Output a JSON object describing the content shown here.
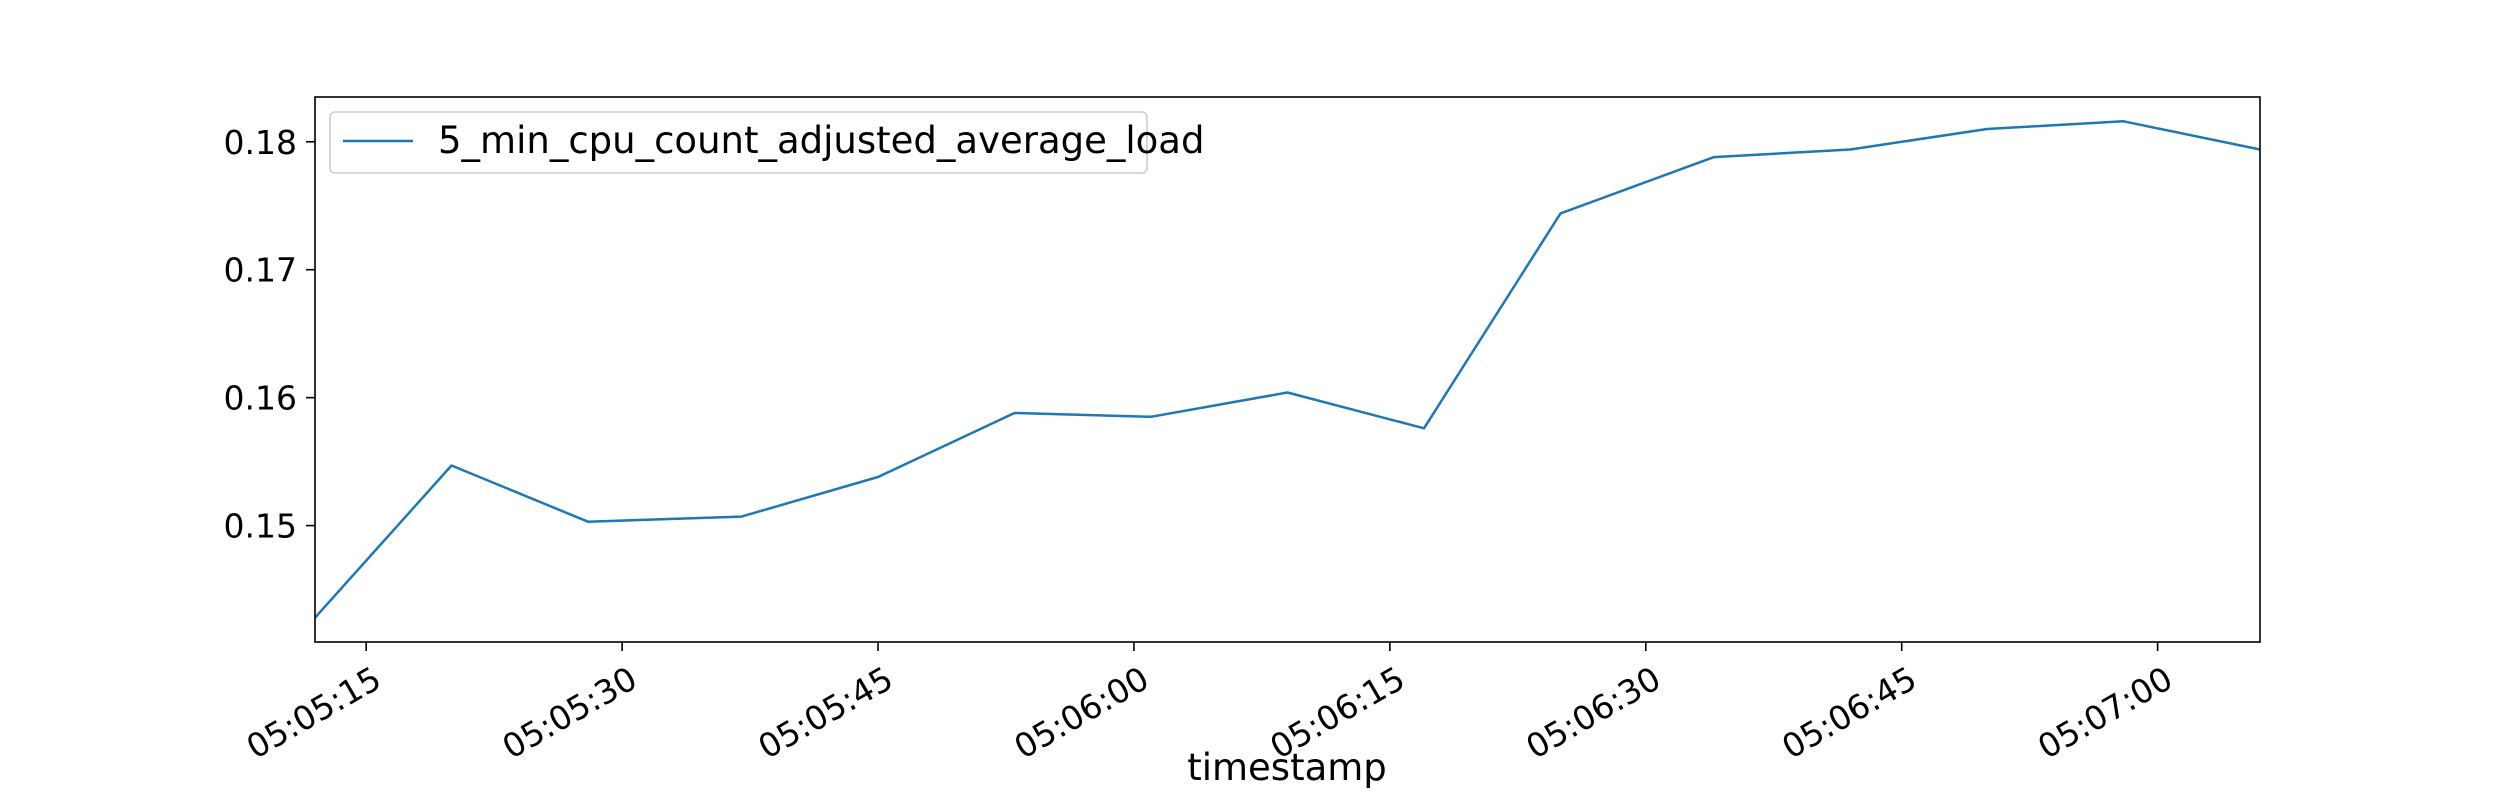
{
  "chart_data": {
    "type": "line",
    "title": "",
    "xlabel": "timestamp",
    "ylabel": "",
    "x": [
      "05:05:12",
      "05:05:20",
      "05:05:28",
      "05:05:37",
      "05:05:45",
      "05:05:53",
      "05:06:01",
      "05:06:09",
      "05:06:17",
      "05:06:25",
      "05:06:34",
      "05:06:42",
      "05:06:50",
      "05:06:58",
      "05:07:06"
    ],
    "series": [
      {
        "name": "5_min_cpu_count_adjusted_average_load",
        "color": "#1f77b4",
        "values": [
          0.1428,
          0.1547,
          0.1503,
          0.1507,
          0.1538,
          0.1588,
          0.1585,
          0.1604,
          0.1576,
          0.1744,
          0.1788,
          0.1794,
          0.181,
          0.1816,
          0.1794
        ]
      }
    ],
    "xlim": [
      "05:05:12",
      "05:07:06"
    ],
    "ylim": [
      0.1409,
      0.1835
    ],
    "x_ticks": [
      "05:05:15",
      "05:05:30",
      "05:05:45",
      "05:06:00",
      "05:06:15",
      "05:06:30",
      "05:06:45",
      "05:07:00"
    ],
    "y_ticks": [
      0.15,
      0.16,
      0.17,
      0.18
    ],
    "y_tick_labels": [
      "0.15",
      "0.16",
      "0.17",
      "0.18"
    ],
    "grid": false,
    "legend": "upper-left"
  }
}
